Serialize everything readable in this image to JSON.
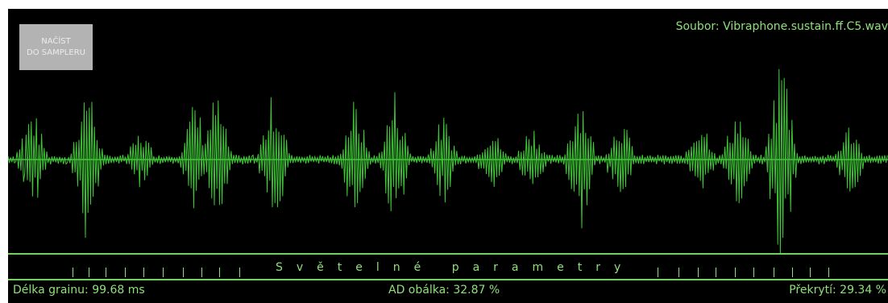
{
  "load_button": {
    "line1": "NAČÍST",
    "line2": "DO SAMPLERU"
  },
  "file": {
    "label": "Soubor: Vibraphone.sustain.ff.C5.wav"
  },
  "parameters_bar": {
    "title": "Světelné parametry"
  },
  "status": {
    "grain_length": "Délka grainu: 99.68 ms",
    "ad_envelope": "AD obálka: 32.87 %",
    "overlap": "Překrytí: 29.34 %"
  },
  "colors": {
    "background": "#000000",
    "waveform": "#3fc736",
    "text": "#8fe07a",
    "button": "#b3b3b3"
  }
}
